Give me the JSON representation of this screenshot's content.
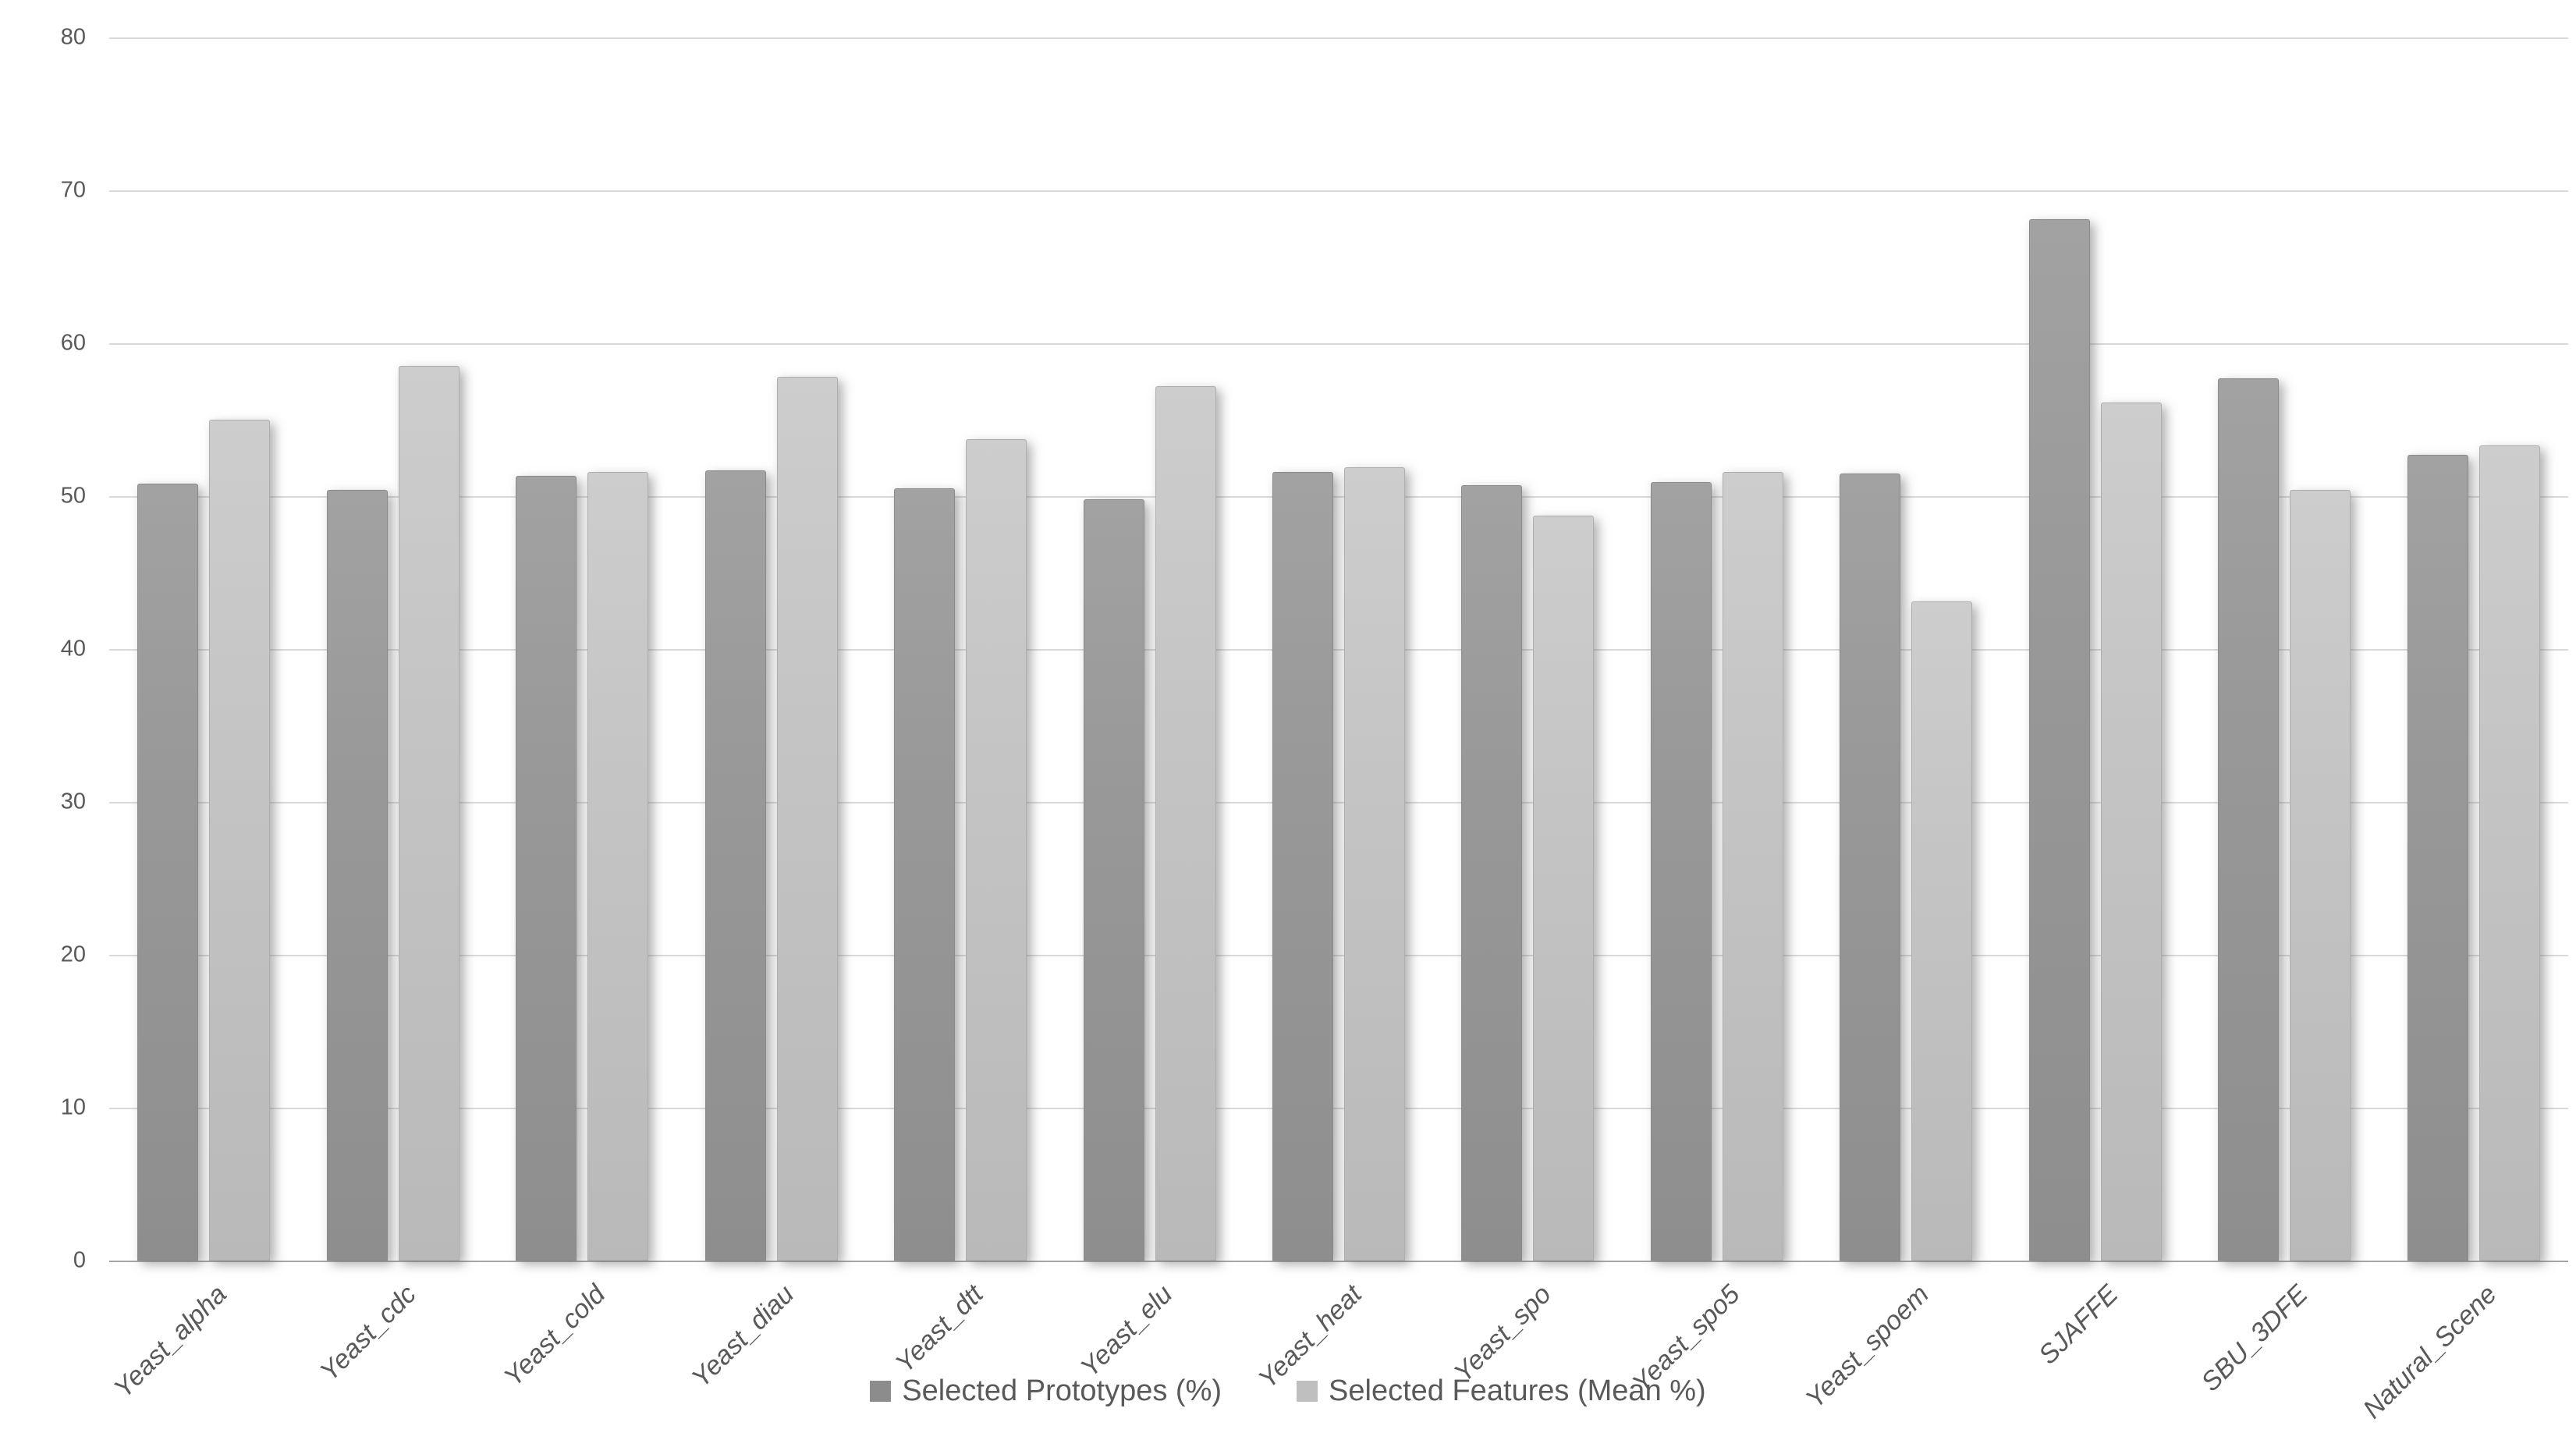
{
  "chart_data": {
    "type": "bar",
    "title": "",
    "xlabel": "",
    "ylabel": "",
    "categories": [
      "Yeast_alpha",
      "Yeast_cdc",
      "Yeast_cold",
      "Yeast_diau",
      "Yeast_dtt",
      "Yeast_elu",
      "Yeast_heat",
      "Yeast_spo",
      "Yeast_spo5",
      "Yeast_spoem",
      "SJAFFE",
      "SBU_3DFE",
      "Natural_Scene"
    ],
    "series": [
      {
        "name": "Selected Prototypes (%)",
        "color": "#999999",
        "legend_swatch_color": "#8c8c8c",
        "values": [
          50.7,
          50.3,
          51.2,
          51.6,
          50.4,
          49.7,
          51.5,
          50.6,
          50.8,
          51.4,
          68.0,
          57.6,
          52.6
        ]
      },
      {
        "name": "Selected Features (Mean %)",
        "color": "#c5c5c5",
        "legend_swatch_color": "#bfbfbf",
        "values": [
          54.9,
          58.4,
          51.5,
          57.7,
          53.6,
          57.1,
          51.8,
          48.6,
          51.5,
          43.0,
          56.0,
          50.3,
          53.2
        ]
      }
    ],
    "ylim": [
      0,
      80
    ],
    "yticks": [
      0,
      10,
      20,
      30,
      40,
      50,
      60,
      70,
      80
    ],
    "grid": true,
    "gridline_color": "#d9d9d9",
    "axis_line_color": "#a6a6a6",
    "tick_label_color": "#595959",
    "legend_position": "bottom"
  }
}
